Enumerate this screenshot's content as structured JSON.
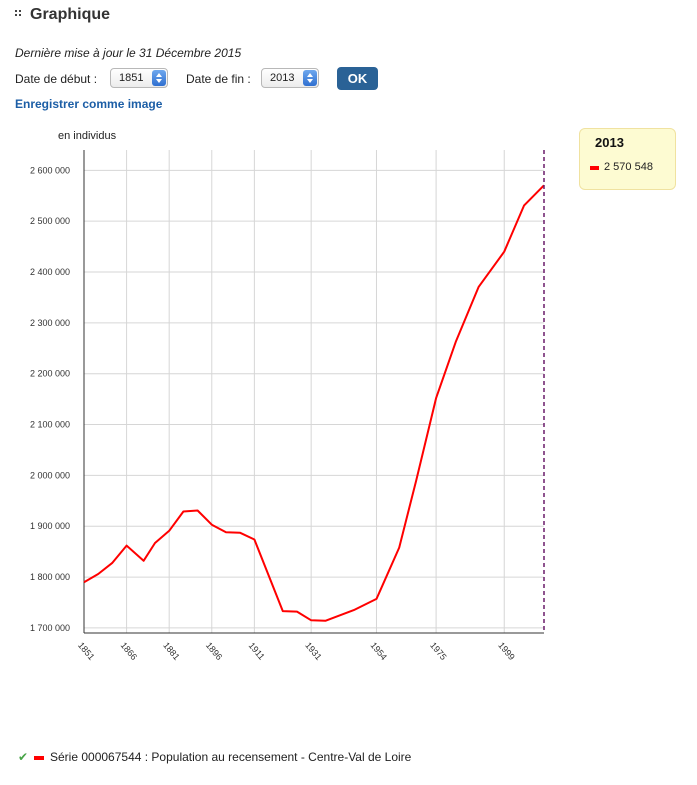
{
  "header": {
    "title": "Graphique",
    "icon": "grip-icon"
  },
  "update_text": "Dernière mise à jour le 31 Décembre 2015",
  "controls": {
    "start_label": "Date de début :",
    "start_value": "1851",
    "end_label": "Date de fin :",
    "end_value": "2013",
    "ok_label": "OK",
    "save_link": "Enregistrer comme image"
  },
  "legend_box": {
    "year": "2013",
    "value": "2 570 548"
  },
  "footer": {
    "series_label": "Série 000067544 : Population au recensement - Centre-Val de Loire"
  },
  "colors": {
    "series": "#ff0000",
    "marker": "#6a1b6a",
    "link": "#1c5ea6",
    "button": "#2a6296"
  },
  "chart_data": {
    "type": "line",
    "ylabel": "en individus",
    "ylim": [
      1690000,
      2640000
    ],
    "xlim": [
      1851,
      2013
    ],
    "yticks": [
      1700000,
      1800000,
      1900000,
      2000000,
      2100000,
      2200000,
      2300000,
      2400000,
      2500000,
      2600000
    ],
    "ytick_labels": [
      "1 700 000",
      "1 800 000",
      "1 900 000",
      "2 000 000",
      "2 100 000",
      "2 200 000",
      "2 300 000",
      "2 400 000",
      "2 500 000",
      "2 600 000"
    ],
    "xticks": [
      1851,
      1866,
      1881,
      1896,
      1911,
      1931,
      1954,
      1975,
      1999
    ],
    "xtick_labels": [
      "1851",
      "1866",
      "1881",
      "1896",
      "1911",
      "1931",
      "1954",
      "1975",
      "1999"
    ],
    "grid": true,
    "highlight_x": 2013,
    "series": [
      {
        "name": "Série 000067544 : Population au recensement - Centre-Val de Loire",
        "x": [
          1851,
          1856,
          1861,
          1866,
          1872,
          1876,
          1881,
          1886,
          1891,
          1896,
          1901,
          1906,
          1911,
          1921,
          1926,
          1931,
          1936,
          1946,
          1954,
          1962,
          1968,
          1975,
          1982,
          1990,
          1999,
          2006,
          2013
        ],
        "y": [
          1790000,
          1806000,
          1828000,
          1862000,
          1832000,
          1867000,
          1891000,
          1929000,
          1931000,
          1903000,
          1888000,
          1887000,
          1874000,
          1733000,
          1732000,
          1715000,
          1714000,
          1735000,
          1757000,
          1858000,
          1990000,
          2152000,
          2264000,
          2371000,
          2440000,
          2531000,
          2570548
        ]
      }
    ]
  }
}
